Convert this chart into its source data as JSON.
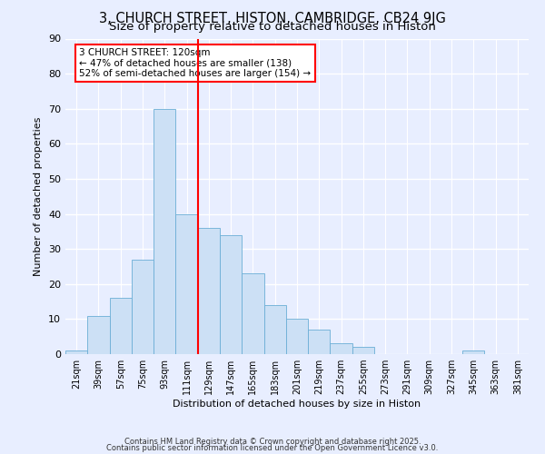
{
  "title": "3, CHURCH STREET, HISTON, CAMBRIDGE, CB24 9JG",
  "subtitle": "Size of property relative to detached houses in Histon",
  "xlabel": "Distribution of detached houses by size in Histon",
  "ylabel": "Number of detached properties",
  "bin_labels": [
    "21sqm",
    "39sqm",
    "57sqm",
    "75sqm",
    "93sqm",
    "111sqm",
    "129sqm",
    "147sqm",
    "165sqm",
    "183sqm",
    "201sqm",
    "219sqm",
    "237sqm",
    "255sqm",
    "273sqm",
    "291sqm",
    "309sqm",
    "327sqm",
    "345sqm",
    "363sqm",
    "381sqm"
  ],
  "bin_starts": [
    12,
    30,
    48,
    66,
    84,
    102,
    120,
    138,
    156,
    174,
    192,
    210,
    228,
    246,
    264,
    282,
    300,
    318,
    336,
    354,
    372
  ],
  "bin_width": 18,
  "values": [
    1,
    11,
    16,
    27,
    70,
    40,
    36,
    34,
    23,
    14,
    10,
    7,
    3,
    2,
    0,
    0,
    0,
    0,
    1,
    0,
    0
  ],
  "bar_color": "#cce0f5",
  "bar_edge_color": "#6baed6",
  "vline_x": 120,
  "vline_color": "red",
  "annotation_text": "3 CHURCH STREET: 120sqm\n← 47% of detached houses are smaller (138)\n52% of semi-detached houses are larger (154) →",
  "annotation_box_color": "white",
  "annotation_box_edge": "red",
  "ylim": [
    0,
    90
  ],
  "yticks": [
    0,
    10,
    20,
    30,
    40,
    50,
    60,
    70,
    80,
    90
  ],
  "xlim_left": 12,
  "xlim_right": 390,
  "bg_color": "#e8eeff",
  "grid_color": "#ffffff",
  "footer1": "Contains HM Land Registry data © Crown copyright and database right 2025.",
  "footer2": "Contains public sector information licensed under the Open Government Licence v3.0.",
  "title_fontsize": 10.5,
  "subtitle_fontsize": 9.5,
  "ylabel_fontsize": 8,
  "xlabel_fontsize": 8,
  "ytick_fontsize": 8,
  "xtick_fontsize": 7
}
